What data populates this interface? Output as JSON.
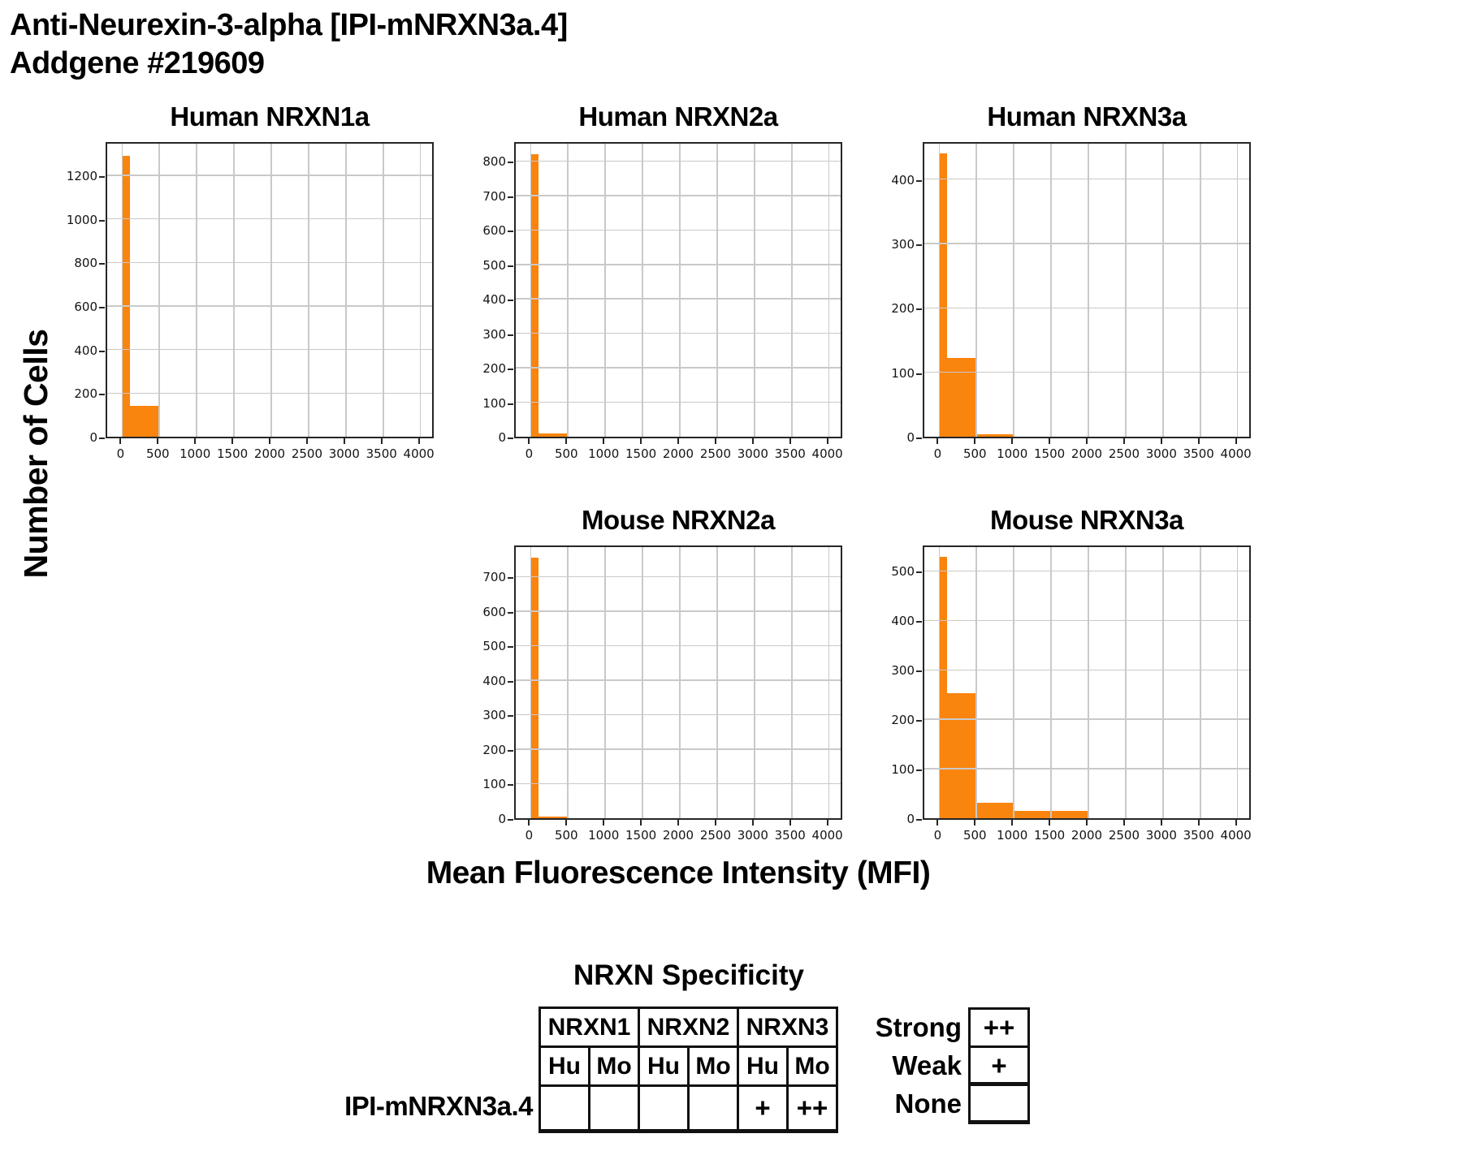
{
  "header": {
    "title_line1": "Anti-Neurexin-3-alpha [IPI-mNRXN3a.4]",
    "title_line2": "Addgene #219609"
  },
  "figure": {
    "ylabel": "Number of Cells",
    "xlabel": "Mean Fluorescence Intensity (MFI)",
    "bar_color": "#F9840E",
    "grid_color": "#C9C9C9",
    "axis_color": "#262626"
  },
  "chart_data": [
    {
      "type": "bar",
      "title": "Human NRXN1a",
      "grid": true,
      "xlim": [
        -200,
        4200
      ],
      "ylim": [
        0,
        1360
      ],
      "x_ticks": [
        0,
        500,
        1000,
        1500,
        2000,
        2500,
        3000,
        3500,
        4000
      ],
      "y_ticks": [
        0,
        200,
        400,
        600,
        800,
        1000,
        1200
      ],
      "bins": [
        {
          "x0": 0,
          "x1": 110,
          "count": 1290
        },
        {
          "x0": 110,
          "x1": 500,
          "count": 140
        }
      ]
    },
    {
      "type": "bar",
      "title": "Human NRXN2a",
      "grid": true,
      "xlim": [
        -200,
        4200
      ],
      "ylim": [
        0,
        860
      ],
      "x_ticks": [
        0,
        500,
        1000,
        1500,
        2000,
        2500,
        3000,
        3500,
        4000
      ],
      "y_ticks": [
        0,
        100,
        200,
        300,
        400,
        500,
        600,
        700,
        800
      ],
      "bins": [
        {
          "x0": 0,
          "x1": 110,
          "count": 820
        },
        {
          "x0": 110,
          "x1": 500,
          "count": 10
        }
      ]
    },
    {
      "type": "bar",
      "title": "Human NRXN3a",
      "grid": true,
      "xlim": [
        -200,
        4200
      ],
      "ylim": [
        0,
        460
      ],
      "x_ticks": [
        0,
        500,
        1000,
        1500,
        2000,
        2500,
        3000,
        3500,
        4000
      ],
      "y_ticks": [
        0,
        100,
        200,
        300,
        400
      ],
      "bins": [
        {
          "x0": 0,
          "x1": 110,
          "count": 440
        },
        {
          "x0": 110,
          "x1": 500,
          "count": 122
        },
        {
          "x0": 500,
          "x1": 1000,
          "count": 4
        }
      ]
    },
    {
      "type": "bar",
      "title": "Mouse NRXN2a",
      "grid": true,
      "xlim": [
        -200,
        4200
      ],
      "ylim": [
        0,
        795
      ],
      "x_ticks": [
        0,
        500,
        1000,
        1500,
        2000,
        2500,
        3000,
        3500,
        4000
      ],
      "y_ticks": [
        0,
        100,
        200,
        300,
        400,
        500,
        600,
        700
      ],
      "bins": [
        {
          "x0": 0,
          "x1": 110,
          "count": 755
        },
        {
          "x0": 110,
          "x1": 500,
          "count": 5
        }
      ]
    },
    {
      "type": "bar",
      "title": "Mouse NRXN3a",
      "grid": true,
      "xlim": [
        -200,
        4200
      ],
      "ylim": [
        0,
        555
      ],
      "x_ticks": [
        0,
        500,
        1000,
        1500,
        2000,
        2500,
        3000,
        3500,
        4000
      ],
      "y_ticks": [
        0,
        100,
        200,
        300,
        400,
        500
      ],
      "bins": [
        {
          "x0": 0,
          "x1": 110,
          "count": 528
        },
        {
          "x0": 110,
          "x1": 500,
          "count": 253
        },
        {
          "x0": 500,
          "x1": 1000,
          "count": 32
        },
        {
          "x0": 1000,
          "x1": 1500,
          "count": 15
        },
        {
          "x0": 1500,
          "x1": 2000,
          "count": 15
        }
      ]
    }
  ],
  "spec_table": {
    "title": "NRXN Specificity",
    "row_label": "IPI-mNRXN3a.4",
    "groups": [
      "NRXN1",
      "NRXN2",
      "NRXN3"
    ],
    "subheaders": [
      "Hu",
      "Mo",
      "Hu",
      "Mo",
      "Hu",
      "Mo"
    ],
    "values": [
      "",
      "",
      "",
      "",
      "+",
      "++"
    ],
    "legend": [
      {
        "label": "Strong",
        "symbol": "++"
      },
      {
        "label": "Weak",
        "symbol": "+"
      },
      {
        "label": "None",
        "symbol": ""
      }
    ]
  }
}
